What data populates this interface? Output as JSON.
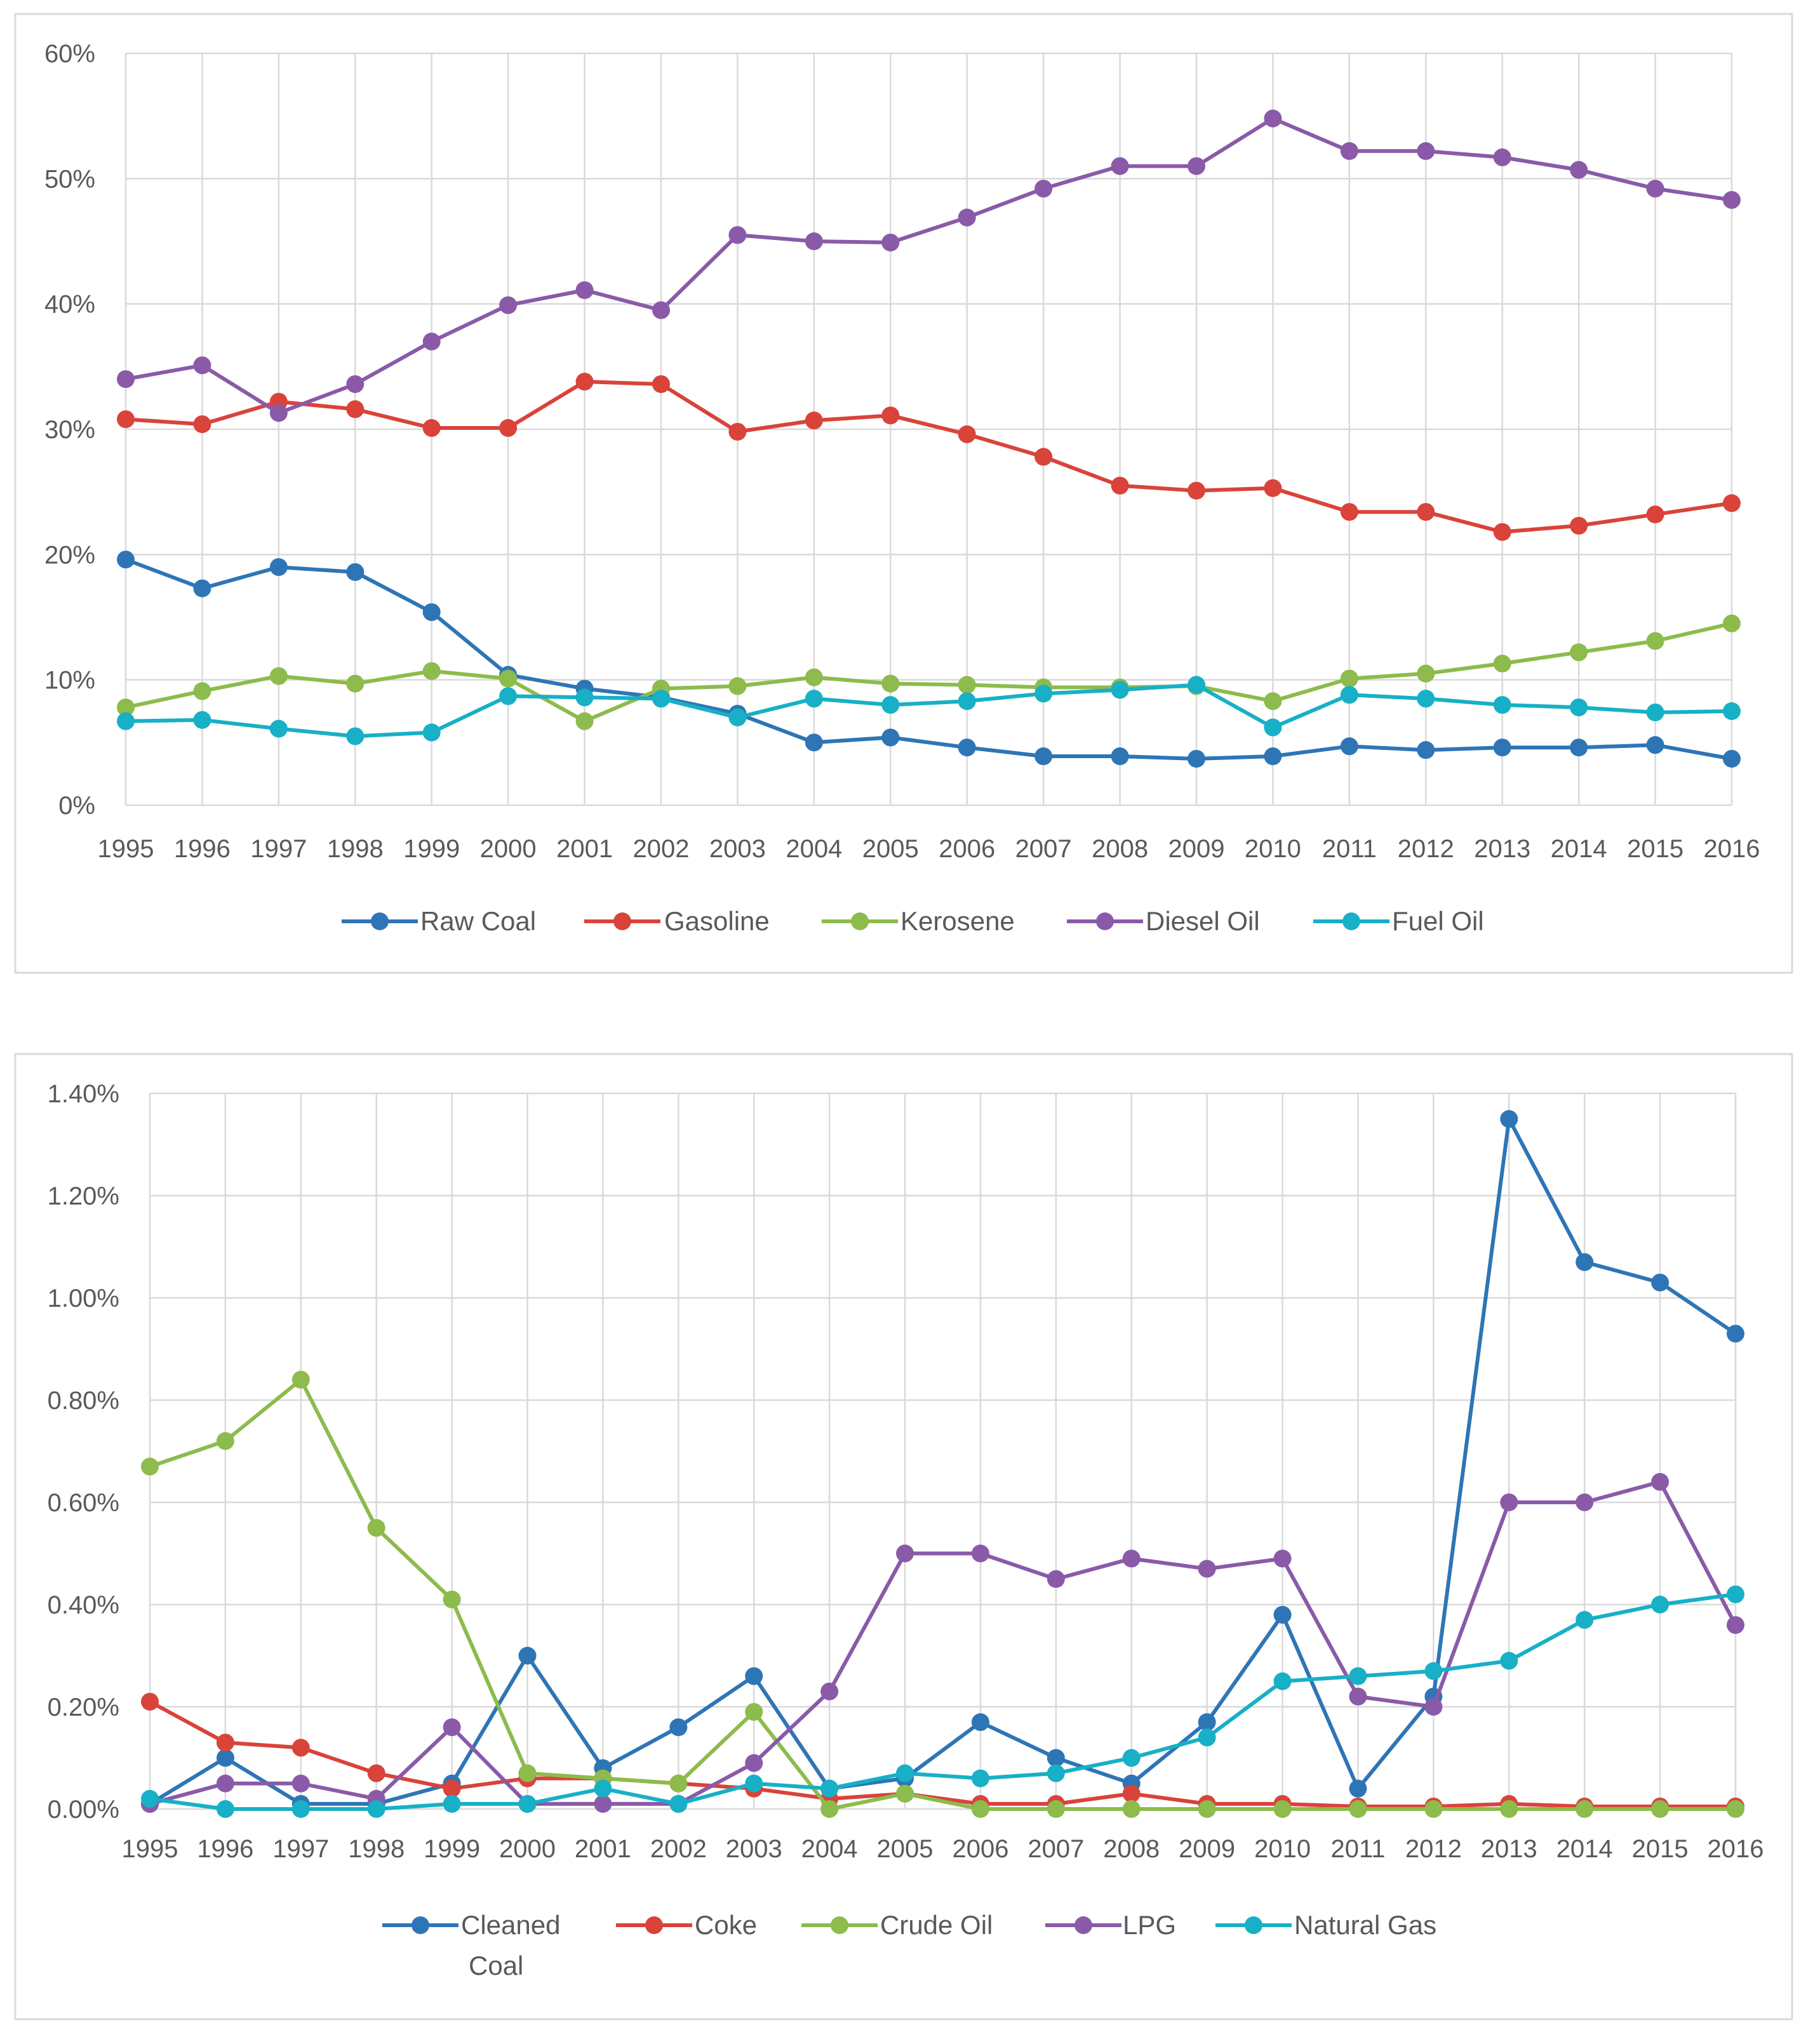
{
  "chart_data": [
    {
      "type": "line",
      "title": "",
      "xlabel": "",
      "ylabel": "",
      "ylim": [
        0,
        60
      ],
      "y_ticks": [
        "0%",
        "10%",
        "20%",
        "30%",
        "40%",
        "50%",
        "60%"
      ],
      "grid": true,
      "legend_position": "bottom",
      "categories": [
        "1995",
        "1996",
        "1997",
        "1998",
        "1999",
        "2000",
        "2001",
        "2002",
        "2003",
        "2004",
        "2005",
        "2006",
        "2007",
        "2008",
        "2009",
        "2010",
        "2011",
        "2012",
        "2013",
        "2014",
        "2015",
        "2016"
      ],
      "series": [
        {
          "name": "Raw Coal",
          "color": "#2e75b6",
          "values": [
            19.6,
            17.3,
            19.0,
            18.6,
            15.4,
            10.4,
            9.3,
            8.6,
            7.3,
            5.0,
            5.4,
            4.6,
            3.9,
            3.9,
            3.7,
            3.9,
            4.7,
            4.4,
            4.6,
            4.6,
            4.8,
            3.7
          ]
        },
        {
          "name": "Gasoline",
          "color": "#d9433a",
          "values": [
            30.8,
            30.4,
            32.2,
            31.6,
            30.1,
            30.1,
            33.8,
            33.6,
            29.8,
            30.7,
            31.1,
            29.6,
            27.8,
            25.5,
            25.1,
            25.3,
            23.4,
            23.4,
            21.8,
            22.3,
            23.2,
            24.1
          ]
        },
        {
          "name": "Kerosene",
          "color": "#8dbb4c",
          "values": [
            7.8,
            9.1,
            10.3,
            9.7,
            10.7,
            10.1,
            6.7,
            9.3,
            9.5,
            10.2,
            9.7,
            9.6,
            9.4,
            9.4,
            9.5,
            8.3,
            10.1,
            10.5,
            11.3,
            12.2,
            13.1,
            14.5
          ]
        },
        {
          "name": "Diesel Oil",
          "color": "#8a5aa8",
          "values": [
            34.0,
            35.1,
            31.3,
            33.6,
            37.0,
            39.9,
            41.1,
            39.5,
            45.5,
            45.0,
            44.9,
            46.9,
            49.2,
            51.0,
            51.0,
            54.8,
            52.2,
            52.2,
            51.7,
            50.7,
            49.2,
            48.3
          ]
        },
        {
          "name": "Fuel Oil",
          "color": "#17b0c6",
          "values": [
            6.7,
            6.8,
            6.1,
            5.5,
            5.8,
            8.7,
            8.6,
            8.5,
            7.0,
            8.5,
            8.0,
            8.3,
            8.9,
            9.2,
            9.6,
            6.2,
            8.8,
            8.5,
            8.0,
            7.8,
            7.4,
            7.5
          ]
        }
      ]
    },
    {
      "type": "line",
      "title": "",
      "xlabel": "",
      "ylabel": "",
      "ylim": [
        0,
        1.4
      ],
      "y_ticks": [
        "0.00%",
        "0.20%",
        "0.40%",
        "0.60%",
        "0.80%",
        "1.00%",
        "1.20%",
        "1.40%"
      ],
      "grid": true,
      "legend_position": "bottom",
      "categories": [
        "1995",
        "1996",
        "1997",
        "1998",
        "1999",
        "2000",
        "2001",
        "2002",
        "2003",
        "2004",
        "2005",
        "2006",
        "2007",
        "2008",
        "2009",
        "2010",
        "2011",
        "2012",
        "2013",
        "2014",
        "2015",
        "2016"
      ],
      "series": [
        {
          "name": "Cleaned Coal",
          "name_lines": [
            "Cleaned",
            "Coal"
          ],
          "color": "#2e75b6",
          "values": [
            0.01,
            0.1,
            0.01,
            0.01,
            0.05,
            0.3,
            0.08,
            0.16,
            0.26,
            0.04,
            0.06,
            0.17,
            0.1,
            0.05,
            0.17,
            0.38,
            0.04,
            0.22,
            1.35,
            1.07,
            1.03,
            0.93
          ]
        },
        {
          "name": "Coke",
          "color": "#d9433a",
          "values": [
            0.21,
            0.13,
            0.12,
            0.07,
            0.04,
            0.06,
            0.06,
            0.05,
            0.04,
            0.02,
            0.03,
            0.01,
            0.01,
            0.03,
            0.01,
            0.01,
            0.005,
            0.005,
            0.01,
            0.005,
            0.005,
            0.005
          ]
        },
        {
          "name": "Crude Oil",
          "color": "#8dbb4c",
          "values": [
            0.67,
            0.72,
            0.84,
            0.55,
            0.41,
            0.07,
            0.06,
            0.05,
            0.19,
            0.0,
            0.03,
            0.0,
            0.0,
            0.0,
            0.0,
            0.0,
            0.0,
            0.0,
            0.0,
            0.0,
            0.0,
            0.0
          ]
        },
        {
          "name": "LPG",
          "color": "#8a5aa8",
          "values": [
            0.01,
            0.05,
            0.05,
            0.02,
            0.16,
            0.01,
            0.01,
            0.01,
            0.09,
            0.23,
            0.5,
            0.5,
            0.45,
            0.49,
            0.47,
            0.49,
            0.22,
            0.2,
            0.6,
            0.6,
            0.64,
            0.36
          ]
        },
        {
          "name": "Natural Gas",
          "color": "#17b0c6",
          "values": [
            0.02,
            0.0,
            0.0,
            0.0,
            0.01,
            0.01,
            0.04,
            0.01,
            0.05,
            0.04,
            0.07,
            0.06,
            0.07,
            0.1,
            0.14,
            0.25,
            0.26,
            0.27,
            0.29,
            0.37,
            0.4,
            0.42
          ]
        }
      ]
    }
  ]
}
